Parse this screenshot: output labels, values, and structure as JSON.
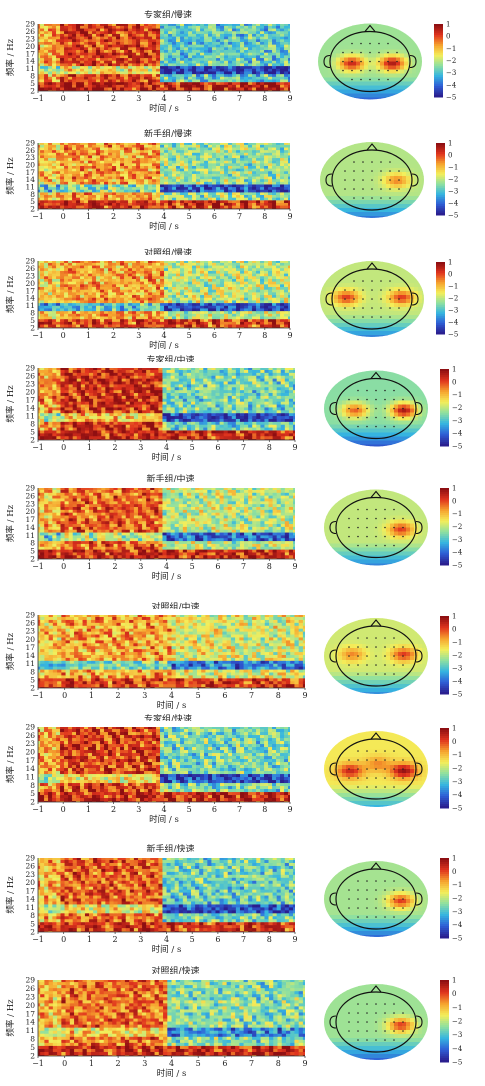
{
  "colors": {
    "colormap": [
      "#2a1f8f",
      "#2f5fd6",
      "#36b6e0",
      "#8fe0a0",
      "#f4ee5a",
      "#f6a32e",
      "#e0341e",
      "#8e0f12"
    ],
    "axis": "#333333",
    "head_outline": "#111111"
  },
  "chart_data": [
    {
      "type": "heatmap",
      "title": "专家组/慢速",
      "xlabel": "时间 / s",
      "ylabel": "频率 / Hz",
      "x_ticks": [
        "-1",
        "0",
        "1",
        "2",
        "3",
        "4",
        "5",
        "6",
        "7",
        "8",
        "9"
      ],
      "y_ticks": [
        "2",
        "5",
        "8",
        "11",
        "14",
        "17",
        "20",
        "23",
        "26",
        "29"
      ],
      "xlim": [
        -1,
        9
      ],
      "ylim": [
        2,
        29
      ],
      "pre_level": 0.85,
      "post_level": 0.35,
      "transition_s": 3.9,
      "low_band_level": 0.92,
      "alpha_dip": 0.25,
      "topomap": {
        "colorbar_ticks": [
          "1",
          "0",
          "-1",
          "-2",
          "-3",
          "-4",
          "-5"
        ],
        "hot_spots": [
          [
            0.28,
            0.5,
            0.9
          ],
          [
            0.72,
            0.5,
            0.95
          ]
        ],
        "base": 0.45
      }
    },
    {
      "type": "heatmap",
      "title": "新手组/慢速",
      "xlabel": "时间 / s",
      "ylabel": "频率 / Hz",
      "x_ticks": [
        "-1",
        "0",
        "1",
        "2",
        "3",
        "4",
        "5",
        "6",
        "7",
        "8",
        "9"
      ],
      "y_ticks": [
        "2",
        "5",
        "8",
        "11",
        "14",
        "17",
        "20",
        "23",
        "26",
        "29"
      ],
      "xlim": [
        -1,
        9
      ],
      "ylim": [
        2,
        29
      ],
      "pre_level": 0.72,
      "post_level": 0.45,
      "transition_s": 3.9,
      "low_band_level": 0.88,
      "alpha_dip": 0.3,
      "topomap": {
        "colorbar_ticks": [
          "1",
          "0",
          "-1",
          "-2",
          "-3",
          "-4",
          "-5"
        ],
        "hot_spots": [
          [
            0.75,
            0.48,
            0.75
          ]
        ],
        "base": 0.48
      }
    },
    {
      "type": "heatmap",
      "title": "对照组/慢速",
      "xlabel": "时间 / s",
      "ylabel": "频率 / Hz",
      "x_ticks": [
        "-1",
        "0",
        "1",
        "2",
        "3",
        "4",
        "5",
        "6",
        "7",
        "8",
        "9"
      ],
      "y_ticks": [
        "2",
        "5",
        "8",
        "11",
        "14",
        "17",
        "20",
        "23",
        "26",
        "29"
      ],
      "xlim": [
        -1,
        9
      ],
      "ylim": [
        2,
        29
      ],
      "pre_level": 0.7,
      "post_level": 0.5,
      "transition_s": 4.0,
      "low_band_level": 0.85,
      "alpha_dip": 0.35,
      "topomap": {
        "colorbar_ticks": [
          "1",
          "0",
          "-1",
          "-2",
          "-3",
          "-4",
          "-5"
        ],
        "hot_spots": [
          [
            0.2,
            0.45,
            0.85
          ],
          [
            0.8,
            0.45,
            0.85
          ]
        ],
        "base": 0.5
      }
    },
    {
      "type": "heatmap",
      "title": "专家组/中速",
      "xlabel": "时间 / s",
      "ylabel": "频率 / Hz",
      "x_ticks": [
        "-1",
        "0",
        "1",
        "2",
        "3",
        "4",
        "5",
        "6",
        "7",
        "8",
        "9"
      ],
      "y_ticks": [
        "2",
        "5",
        "8",
        "11",
        "14",
        "17",
        "20",
        "23",
        "26",
        "29"
      ],
      "xlim": [
        -1,
        9
      ],
      "ylim": [
        2,
        29
      ],
      "pre_level": 0.88,
      "post_level": 0.4,
      "transition_s": 3.8,
      "low_band_level": 0.9,
      "alpha_dip": 0.25,
      "topomap": {
        "colorbar_ticks": [
          "1",
          "0",
          "-1",
          "-2",
          "-3",
          "-4",
          "-5"
        ],
        "hot_spots": [
          [
            0.25,
            0.5,
            0.8
          ],
          [
            0.78,
            0.5,
            0.95
          ]
        ],
        "base": 0.42
      }
    },
    {
      "type": "heatmap",
      "title": "新手组/中速",
      "xlabel": "时间 / s",
      "ylabel": "频率 / Hz",
      "x_ticks": [
        "-1",
        "0",
        "1",
        "2",
        "3",
        "4",
        "5",
        "6",
        "7",
        "8",
        "9"
      ],
      "y_ticks": [
        "2",
        "5",
        "8",
        "11",
        "14",
        "17",
        "20",
        "23",
        "26",
        "29"
      ],
      "xlim": [
        -1,
        9
      ],
      "ylim": [
        2,
        29
      ],
      "pre_level": 0.8,
      "post_level": 0.5,
      "transition_s": 3.9,
      "low_band_level": 0.9,
      "alpha_dip": 0.3,
      "topomap": {
        "colorbar_ticks": [
          "1",
          "0",
          "-1",
          "-2",
          "-3",
          "-4",
          "-5"
        ],
        "hot_spots": [
          [
            0.75,
            0.5,
            0.85
          ]
        ],
        "base": 0.5
      }
    },
    {
      "type": "heatmap",
      "title": "对照组/中速",
      "xlabel": "时间 / s",
      "ylabel": "频率 / Hz",
      "x_ticks": [
        "-1",
        "0",
        "1",
        "2",
        "3",
        "4",
        "5",
        "6",
        "7",
        "8",
        "9"
      ],
      "y_ticks": [
        "2",
        "5",
        "8",
        "11",
        "14",
        "17",
        "20",
        "23",
        "26",
        "29"
      ],
      "xlim": [
        -1,
        9
      ],
      "ylim": [
        2,
        29
      ],
      "pre_level": 0.7,
      "post_level": 0.55,
      "transition_s": 4.0,
      "low_band_level": 0.85,
      "alpha_dip": 0.3,
      "topomap": {
        "colorbar_ticks": [
          "1",
          "0",
          "-1",
          "-2",
          "-3",
          "-4",
          "-5"
        ],
        "hot_spots": [
          [
            0.22,
            0.45,
            0.75
          ],
          [
            0.78,
            0.45,
            0.85
          ]
        ],
        "base": 0.52
      }
    },
    {
      "type": "heatmap",
      "title": "专家组/快速",
      "xlabel": "时间 / s",
      "ylabel": "频率 / Hz",
      "x_ticks": [
        "-1",
        "0",
        "1",
        "2",
        "3",
        "4",
        "5",
        "6",
        "7",
        "8",
        "9"
      ],
      "y_ticks": [
        "2",
        "5",
        "8",
        "11",
        "14",
        "17",
        "20",
        "23",
        "26",
        "29"
      ],
      "xlim": [
        -1,
        9
      ],
      "ylim": [
        2,
        29
      ],
      "pre_level": 0.85,
      "post_level": 0.4,
      "transition_s": 3.9,
      "low_band_level": 0.9,
      "alpha_dip": 0.25,
      "topomap": {
        "colorbar_ticks": [
          "1",
          "0",
          "-1",
          "-2",
          "-3",
          "-4",
          "-5"
        ],
        "hot_spots": [
          [
            0.2,
            0.5,
            0.9
          ],
          [
            0.5,
            0.4,
            0.75
          ],
          [
            0.78,
            0.5,
            0.98
          ]
        ],
        "base": 0.58
      }
    },
    {
      "type": "heatmap",
      "title": "新手组/快速",
      "xlabel": "时间 / s",
      "ylabel": "频率 / Hz",
      "x_ticks": [
        "-1",
        "0",
        "1",
        "2",
        "3",
        "4",
        "5",
        "6",
        "7",
        "8",
        "9"
      ],
      "y_ticks": [
        "2",
        "5",
        "8",
        "11",
        "14",
        "17",
        "20",
        "23",
        "26",
        "29"
      ],
      "xlim": [
        -1,
        9
      ],
      "ylim": [
        2,
        29
      ],
      "pre_level": 0.8,
      "post_level": 0.38,
      "transition_s": 3.8,
      "low_band_level": 0.88,
      "alpha_dip": 0.22,
      "topomap": {
        "colorbar_ticks": [
          "1",
          "0",
          "-1",
          "-2",
          "-3",
          "-4",
          "-5"
        ],
        "hot_spots": [
          [
            0.75,
            0.5,
            0.85
          ]
        ],
        "base": 0.46
      }
    },
    {
      "type": "heatmap",
      "title": "对照组/快速",
      "xlabel": "时间 / s",
      "ylabel": "频率 / Hz",
      "x_ticks": [
        "-1",
        "0",
        "1",
        "2",
        "3",
        "4",
        "5",
        "6",
        "7",
        "8",
        "9"
      ],
      "y_ticks": [
        "2",
        "5",
        "8",
        "11",
        "14",
        "17",
        "20",
        "23",
        "26",
        "29"
      ],
      "xlim": [
        -1,
        9
      ],
      "ylim": [
        2,
        29
      ],
      "pre_level": 0.78,
      "post_level": 0.42,
      "transition_s": 3.9,
      "low_band_level": 0.9,
      "alpha_dip": 0.15,
      "topomap": {
        "colorbar_ticks": [
          "1",
          "0",
          "-1",
          "-2",
          "-3",
          "-4",
          "-5"
        ],
        "hot_spots": [
          [
            0.75,
            0.52,
            0.85
          ]
        ],
        "base": 0.45
      }
    }
  ]
}
